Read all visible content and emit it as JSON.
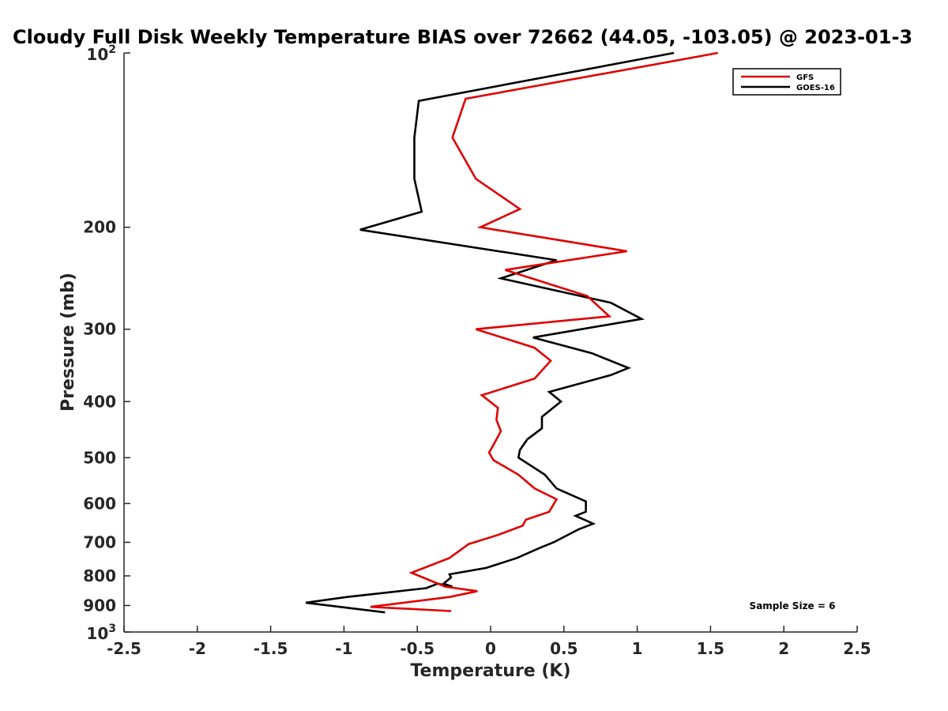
{
  "chart_data": {
    "type": "line",
    "title": "Cloudy Full Disk Weekly Temperature BIAS over 72662 (44.05, -103.05) @ 2023-01-3",
    "xlabel": "Temperature (K)",
    "ylabel": "Pressure (mb)",
    "xlim": [
      -2.5,
      2.5
    ],
    "ylim": [
      100,
      1000
    ],
    "y_scale": "log",
    "y_reversed": true,
    "grid": false,
    "legend_position": "top-right",
    "x_ticks": [
      "-2.5",
      "-2",
      "-1.5",
      "-1",
      "-0.5",
      "0",
      "0.5",
      "1",
      "1.5",
      "2",
      "2.5"
    ],
    "y_ticks": [
      {
        "value": 100,
        "base": "10",
        "exp": "2"
      },
      {
        "value": 200,
        "label": "200"
      },
      {
        "value": 300,
        "label": "300"
      },
      {
        "value": 400,
        "label": "400"
      },
      {
        "value": 500,
        "label": "500"
      },
      {
        "value": 600,
        "label": "600"
      },
      {
        "value": 700,
        "label": "700"
      },
      {
        "value": 800,
        "label": "800"
      },
      {
        "value": 900,
        "label": "900"
      },
      {
        "value": 1000,
        "base": "10",
        "exp": "3"
      }
    ],
    "annotation": "Sample Size = 6",
    "series": [
      {
        "name": "GFS",
        "color": "#e00000",
        "points": [
          [
            1.55,
            100
          ],
          [
            -0.17,
            120
          ],
          [
            -0.26,
            140
          ],
          [
            -0.1,
            165
          ],
          [
            0.2,
            186
          ],
          [
            -0.07,
            200
          ],
          [
            0.93,
            220
          ],
          [
            0.1,
            237
          ],
          [
            0.66,
            263
          ],
          [
            0.81,
            285
          ],
          [
            -0.1,
            300
          ],
          [
            0.3,
            323
          ],
          [
            0.41,
            340
          ],
          [
            0.3,
            365
          ],
          [
            -0.06,
            390
          ],
          [
            0.05,
            410
          ],
          [
            0.04,
            430
          ],
          [
            0.07,
            450
          ],
          [
            0.02,
            475
          ],
          [
            -0.01,
            490
          ],
          [
            0.02,
            505
          ],
          [
            0.19,
            535
          ],
          [
            0.3,
            565
          ],
          [
            0.45,
            590
          ],
          [
            0.4,
            620
          ],
          [
            0.24,
            640
          ],
          [
            0.22,
            655
          ],
          [
            0.05,
            680
          ],
          [
            -0.15,
            705
          ],
          [
            -0.28,
            745
          ],
          [
            -0.54,
            790
          ],
          [
            -0.31,
            835
          ],
          [
            -0.09,
            850
          ],
          [
            -0.28,
            870
          ],
          [
            -0.82,
            905
          ],
          [
            -0.27,
            920
          ]
        ]
      },
      {
        "name": "GOES-16",
        "color": "#000000",
        "points": [
          [
            1.25,
            100
          ],
          [
            -0.49,
            121
          ],
          [
            -0.52,
            140
          ],
          [
            -0.52,
            165
          ],
          [
            -0.47,
            188
          ],
          [
            -0.89,
            202
          ],
          [
            0.45,
            228
          ],
          [
            0.07,
            245
          ],
          [
            0.82,
            270
          ],
          [
            1.03,
            288
          ],
          [
            0.29,
            310
          ],
          [
            0.69,
            330
          ],
          [
            0.94,
            350
          ],
          [
            0.82,
            360
          ],
          [
            0.4,
            385
          ],
          [
            0.48,
            400
          ],
          [
            0.35,
            425
          ],
          [
            0.35,
            445
          ],
          [
            0.25,
            465
          ],
          [
            0.2,
            485
          ],
          [
            0.19,
            500
          ],
          [
            0.37,
            535
          ],
          [
            0.45,
            565
          ],
          [
            0.65,
            595
          ],
          [
            0.65,
            620
          ],
          [
            0.58,
            630
          ],
          [
            0.7,
            650
          ],
          [
            0.6,
            665
          ],
          [
            0.43,
            700
          ],
          [
            0.34,
            715
          ],
          [
            0.18,
            745
          ],
          [
            -0.03,
            775
          ],
          [
            -0.28,
            795
          ],
          [
            -0.27,
            805
          ],
          [
            -0.32,
            825
          ],
          [
            -0.26,
            835
          ],
          [
            -0.36,
            825
          ],
          [
            -0.44,
            840
          ],
          [
            -0.98,
            870
          ],
          [
            -1.26,
            890
          ],
          [
            -0.72,
            925
          ]
        ]
      }
    ]
  }
}
